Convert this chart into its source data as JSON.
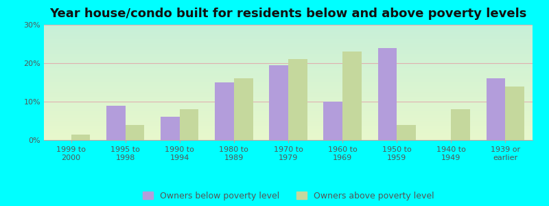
{
  "title": "Year house/condo built for residents below and above poverty levels",
  "categories": [
    "1999 to\n2000",
    "1995 to\n1998",
    "1990 to\n1994",
    "1980 to\n1989",
    "1970 to\n1979",
    "1960 to\n1969",
    "1950 to\n1959",
    "1940 to\n1949",
    "1939 or\nearlier"
  ],
  "below_poverty": [
    0.0,
    9.0,
    6.0,
    15.0,
    19.5,
    10.0,
    24.0,
    0.0,
    16.0
  ],
  "above_poverty": [
    1.5,
    4.0,
    8.0,
    16.0,
    21.0,
    23.0,
    4.0,
    8.0,
    14.0
  ],
  "below_color": "#b39ddb",
  "above_color": "#c5d89d",
  "ylim": [
    0,
    30
  ],
  "yticks": [
    0,
    10,
    20,
    30
  ],
  "ytick_labels": [
    "0%",
    "10%",
    "20%",
    "30%"
  ],
  "bg_color": "#00ffff",
  "plot_bg_top": "#c8f0d8",
  "plot_bg_bottom": "#e8f8cc",
  "grid_color": "#e0b0b0",
  "bar_width": 0.35,
  "legend_below_label": "Owners below poverty level",
  "legend_above_label": "Owners above poverty level",
  "title_fontsize": 13,
  "tick_fontsize": 8,
  "legend_fontsize": 9,
  "tick_color": "#555555",
  "spine_color": "#aaaaaa"
}
